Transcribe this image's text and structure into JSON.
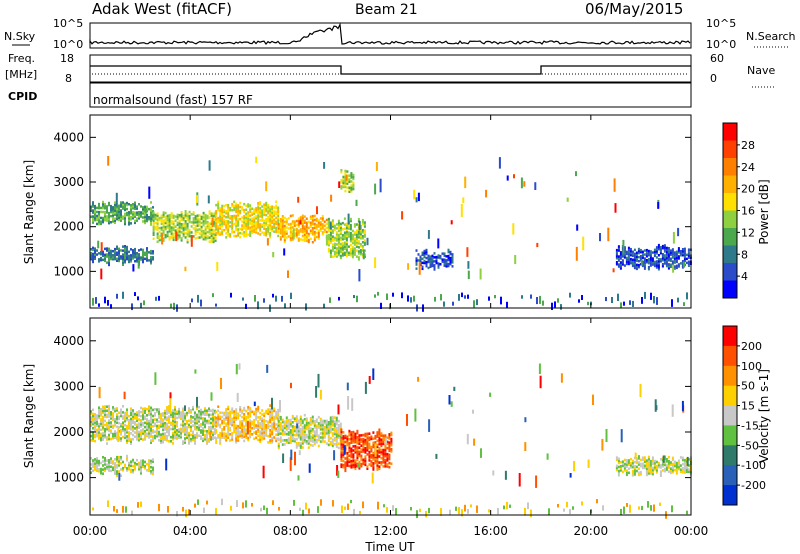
{
  "header": {
    "station": "Adak West (fitACF)",
    "beam": "Beam 21",
    "date": "06/May/2015"
  },
  "noise_panel": {
    "left_label": "N.Sky",
    "right_label": "N.Search",
    "left_ticks": [
      "10^5",
      "10^0"
    ],
    "right_ticks": [
      "10^5",
      "10^0"
    ]
  },
  "freq_panel": {
    "left_label": "Freq.",
    "left_unit": "[MHz]",
    "left_ticks": [
      "18",
      "8"
    ],
    "right_label": "Nave",
    "right_ticks": [
      "60",
      "0"
    ]
  },
  "cpid_panel": {
    "label": "CPID",
    "text": "normalsound (fast) 157 RF"
  },
  "chart_data": [
    {
      "type": "heatmap",
      "name": "Power",
      "ylabel": "Slant Range [km]",
      "xlabel": "Time UT",
      "ylim": [
        180,
        4500
      ],
      "yticks": [
        "1000",
        "2000",
        "3000",
        "4000"
      ],
      "xticks": [
        "00:00",
        "04:00",
        "08:00",
        "12:00",
        "16:00",
        "20:00",
        "00:00"
      ],
      "colorbar": {
        "label": "Power [dB]",
        "ticks": [
          "4",
          "8",
          "12",
          "16",
          "20",
          "24",
          "28"
        ],
        "colors": [
          "#0000ff",
          "#2a4cc8",
          "#2f7a8a",
          "#4ca84c",
          "#8fd040",
          "#ffe000",
          "#ffb000",
          "#ff8000",
          "#ff4000",
          "#ff0000"
        ]
      },
      "echo_bands": [
        {
          "t0": 0.0,
          "t1": 2.5,
          "r0": 2100,
          "r1": 2500,
          "level": 3
        },
        {
          "t0": 2.5,
          "t1": 5.0,
          "r0": 1700,
          "r1": 2300,
          "level": 4
        },
        {
          "t0": 5.0,
          "t1": 7.5,
          "r0": 1800,
          "r1": 2500,
          "level": 5
        },
        {
          "t0": 7.5,
          "t1": 9.5,
          "r0": 1700,
          "r1": 2200,
          "level": 6
        },
        {
          "t0": 9.5,
          "t1": 11.0,
          "r0": 1300,
          "r1": 2100,
          "level": 4
        },
        {
          "t0": 10.0,
          "t1": 10.5,
          "r0": 2800,
          "r1": 3200,
          "level": 4
        },
        {
          "t0": 0.0,
          "t1": 2.5,
          "r0": 1200,
          "r1": 1500,
          "level": 2
        },
        {
          "t0": 13.0,
          "t1": 14.5,
          "r0": 1100,
          "r1": 1400,
          "level": 1
        },
        {
          "t0": 21.0,
          "t1": 24.0,
          "r0": 1100,
          "r1": 1500,
          "level": 1
        }
      ]
    },
    {
      "type": "heatmap",
      "name": "Velocity",
      "ylabel": "Slant Range [km]",
      "xlabel": "Time UT",
      "ylim": [
        180,
        4500
      ],
      "yticks": [
        "1000",
        "2000",
        "3000",
        "4000"
      ],
      "xticks": [
        "00:00",
        "04:00",
        "08:00",
        "12:00",
        "16:00",
        "20:00",
        "00:00"
      ],
      "colorbar": {
        "label": "Velocity [m s-1]",
        "ticks": [
          "200",
          "100",
          "50",
          "15",
          "-15",
          "-50",
          "-100",
          "-200"
        ],
        "colors": [
          "#0030d0",
          "#2a60b8",
          "#2f7a6a",
          "#60c040",
          "#c8c8c8",
          "#ffd000",
          "#ff9000",
          "#ff5000",
          "#ff0000"
        ]
      },
      "echo_bands": [
        {
          "t0": 0.0,
          "t1": 5.0,
          "r0": 1800,
          "r1": 2500,
          "level": 4
        },
        {
          "t0": 5.0,
          "t1": 7.5,
          "r0": 1800,
          "r1": 2500,
          "level": 5
        },
        {
          "t0": 7.5,
          "t1": 10.0,
          "r0": 1700,
          "r1": 2300,
          "level": 4
        },
        {
          "t0": 10.0,
          "t1": 12.0,
          "r0": 1200,
          "r1": 2000,
          "level": 7
        },
        {
          "t0": 0.0,
          "t1": 2.5,
          "r0": 1100,
          "r1": 1400,
          "level": 4
        },
        {
          "t0": 21.0,
          "t1": 24.0,
          "r0": 1100,
          "r1": 1400,
          "level": 4
        }
      ]
    }
  ],
  "colors": {
    "frame": "#000000",
    "background": "#ffffff"
  }
}
